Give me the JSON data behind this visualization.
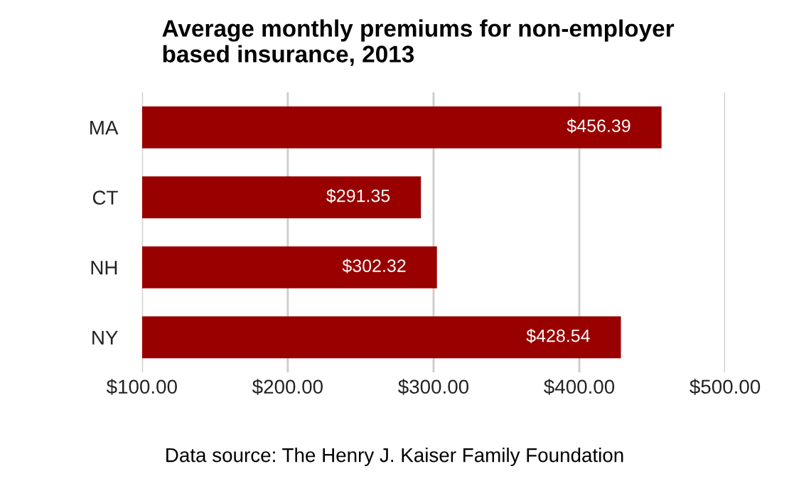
{
  "chart_data": {
    "type": "bar",
    "orientation": "horizontal",
    "title": "Average monthly premiums for non-employer\nbased insurance, 2013",
    "categories": [
      "MA",
      "CT",
      "NH",
      "NY"
    ],
    "values": [
      456.39,
      291.35,
      302.32,
      428.54
    ],
    "value_labels": [
      "$456.39",
      "$291.35",
      "$302.32",
      "$428.54"
    ],
    "color": "#990000",
    "xlim": [
      100,
      500
    ],
    "xticks": [
      {
        "value": 100,
        "label": "$100.00"
      },
      {
        "value": 200,
        "label": "$200.00"
      },
      {
        "value": 300,
        "label": "$300.00"
      },
      {
        "value": 400,
        "label": "$400.00"
      },
      {
        "value": 500,
        "label": "$500.00"
      }
    ],
    "grid": "x",
    "annotations": [
      "Data source: The Henry J. Kaiser Family Foundation"
    ]
  }
}
